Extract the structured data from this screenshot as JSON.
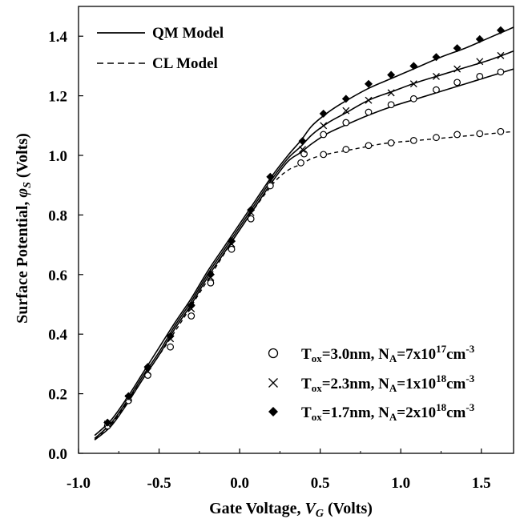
{
  "chart_data": {
    "type": "line",
    "xlabel": "Gate Voltage, V_G (Volts)",
    "xlabel_parts": {
      "prefix": "Gate Voltage, ",
      "var": "V",
      "sub": "G",
      "suffix": " (Volts)"
    },
    "ylabel": "Surface Potential, φ_S (Volts)",
    "ylabel_parts": {
      "prefix": "Surface Potential, ",
      "var": "φ",
      "sub": "S",
      "suffix": " (Volts)"
    },
    "xlim": [
      -1.0,
      1.7
    ],
    "ylim": [
      0.0,
      1.5
    ],
    "xticks": [
      "-1.0",
      "-0.5",
      "0.0",
      "0.5",
      "1.0",
      "1.5"
    ],
    "xtick_values": [
      -1.0,
      -0.5,
      0.0,
      0.5,
      1.0,
      1.5
    ],
    "yticks": [
      "0.0",
      "0.2",
      "0.4",
      "0.6",
      "0.8",
      "1.0",
      "1.2",
      "1.4"
    ],
    "ytick_values": [
      0.0,
      0.2,
      0.4,
      0.6,
      0.8,
      1.0,
      1.2,
      1.4
    ],
    "grid": false,
    "line_legend": {
      "placement": "top-left",
      "entries": [
        {
          "label": "QM Model",
          "style": "solid"
        },
        {
          "label": "CL Model",
          "style": "dashed"
        }
      ]
    },
    "marker_legend": {
      "placement": "bottom-right",
      "entries": [
        {
          "marker": "circle",
          "tox": "T",
          "tox_sub": "ox",
          "tox_val": "=3.0nm, N",
          "na_sub": "A",
          "na_val": "=7x10",
          "exp": "17",
          "unit": "cm",
          "unit_exp": "-3"
        },
        {
          "marker": "x",
          "tox": "T",
          "tox_sub": "ox",
          "tox_val": "=2.3nm, N",
          "na_sub": "A",
          "na_val": "=1x10",
          "exp": "18",
          "unit": "cm",
          "unit_exp": "-3"
        },
        {
          "marker": "diamond",
          "tox": "T",
          "tox_sub": "ox",
          "tox_val": "=1.7nm, N",
          "na_sub": "A",
          "na_val": "=2x10",
          "exp": "18",
          "unit": "cm",
          "unit_exp": "-3"
        }
      ]
    },
    "series": [
      {
        "marker": "circle",
        "line": "solid",
        "curve": [
          [
            -0.9,
            0.045
          ],
          [
            -0.8,
            0.09
          ],
          [
            -0.7,
            0.165
          ],
          [
            -0.6,
            0.25
          ],
          [
            -0.5,
            0.33
          ],
          [
            -0.4,
            0.42
          ],
          [
            -0.3,
            0.5
          ],
          [
            -0.2,
            0.59
          ],
          [
            -0.1,
            0.67
          ],
          [
            0.0,
            0.75
          ],
          [
            0.1,
            0.83
          ],
          [
            0.2,
            0.91
          ],
          [
            0.3,
            0.98
          ],
          [
            0.38,
            1.01
          ],
          [
            0.45,
            1.04
          ],
          [
            0.55,
            1.075
          ],
          [
            0.65,
            1.1
          ],
          [
            0.8,
            1.135
          ],
          [
            0.95,
            1.165
          ],
          [
            1.1,
            1.19
          ],
          [
            1.25,
            1.215
          ],
          [
            1.4,
            1.24
          ],
          [
            1.55,
            1.265
          ],
          [
            1.7,
            1.29
          ]
        ],
        "points": [
          [
            -0.82,
            0.092
          ],
          [
            -0.69,
            0.177
          ],
          [
            -0.57,
            0.262
          ],
          [
            -0.43,
            0.357
          ],
          [
            -0.3,
            0.461
          ],
          [
            -0.18,
            0.572
          ],
          [
            -0.05,
            0.685
          ],
          [
            0.07,
            0.787
          ],
          [
            0.19,
            0.898
          ],
          [
            0.38,
            0.975
          ],
          [
            0.4,
            1.005
          ],
          [
            0.52,
            1.07
          ],
          [
            0.66,
            1.11
          ],
          [
            0.8,
            1.145
          ],
          [
            0.94,
            1.17
          ],
          [
            1.08,
            1.19
          ],
          [
            1.22,
            1.22
          ],
          [
            1.35,
            1.245
          ],
          [
            1.49,
            1.265
          ],
          [
            1.62,
            1.28
          ]
        ]
      },
      {
        "marker": "circle",
        "line": "dashed",
        "curve": [
          [
            -0.9,
            0.05
          ],
          [
            -0.8,
            0.095
          ],
          [
            -0.6,
            0.25
          ],
          [
            -0.4,
            0.41
          ],
          [
            -0.2,
            0.58
          ],
          [
            0.0,
            0.75
          ],
          [
            0.2,
            0.9
          ],
          [
            0.3,
            0.95
          ],
          [
            0.38,
            0.97
          ],
          [
            0.45,
            0.99
          ],
          [
            0.55,
            1.005
          ],
          [
            0.7,
            1.02
          ],
          [
            0.9,
            1.04
          ],
          [
            1.1,
            1.05
          ],
          [
            1.3,
            1.06
          ],
          [
            1.5,
            1.07
          ],
          [
            1.7,
            1.08
          ]
        ],
        "points": [
          [
            0.52,
            1.003
          ],
          [
            0.66,
            1.02
          ],
          [
            0.8,
            1.033
          ],
          [
            0.94,
            1.042
          ],
          [
            1.08,
            1.05
          ],
          [
            1.22,
            1.06
          ],
          [
            1.35,
            1.07
          ],
          [
            1.49,
            1.073
          ],
          [
            1.62,
            1.08
          ]
        ]
      },
      {
        "marker": "x",
        "line": "solid",
        "curve": [
          [
            -0.9,
            0.05
          ],
          [
            -0.8,
            0.1
          ],
          [
            -0.7,
            0.175
          ],
          [
            -0.6,
            0.26
          ],
          [
            -0.5,
            0.34
          ],
          [
            -0.4,
            0.43
          ],
          [
            -0.3,
            0.51
          ],
          [
            -0.2,
            0.6
          ],
          [
            -0.1,
            0.68
          ],
          [
            0.0,
            0.76
          ],
          [
            0.1,
            0.84
          ],
          [
            0.2,
            0.92
          ],
          [
            0.3,
            0.99
          ],
          [
            0.38,
            1.03
          ],
          [
            0.45,
            1.07
          ],
          [
            0.55,
            1.11
          ],
          [
            0.65,
            1.14
          ],
          [
            0.8,
            1.185
          ],
          [
            0.95,
            1.215
          ],
          [
            1.1,
            1.245
          ],
          [
            1.25,
            1.27
          ],
          [
            1.4,
            1.295
          ],
          [
            1.55,
            1.32
          ],
          [
            1.7,
            1.35
          ]
        ],
        "points": [
          [
            -0.82,
            0.098
          ],
          [
            -0.69,
            0.185
          ],
          [
            -0.57,
            0.275
          ],
          [
            -0.43,
            0.385
          ],
          [
            -0.3,
            0.485
          ],
          [
            -0.18,
            0.59
          ],
          [
            -0.05,
            0.703
          ],
          [
            0.07,
            0.808
          ],
          [
            0.19,
            0.918
          ],
          [
            0.39,
            1.02
          ],
          [
            0.52,
            1.1
          ],
          [
            0.66,
            1.15
          ],
          [
            0.8,
            1.185
          ],
          [
            0.94,
            1.21
          ],
          [
            1.08,
            1.24
          ],
          [
            1.22,
            1.265
          ],
          [
            1.35,
            1.29
          ],
          [
            1.49,
            1.315
          ],
          [
            1.62,
            1.335
          ]
        ]
      },
      {
        "marker": "diamond",
        "line": "solid",
        "curve": [
          [
            -0.9,
            0.06
          ],
          [
            -0.8,
            0.11
          ],
          [
            -0.7,
            0.185
          ],
          [
            -0.6,
            0.27
          ],
          [
            -0.5,
            0.355
          ],
          [
            -0.4,
            0.44
          ],
          [
            -0.3,
            0.52
          ],
          [
            -0.2,
            0.61
          ],
          [
            -0.1,
            0.69
          ],
          [
            0.0,
            0.77
          ],
          [
            0.1,
            0.85
          ],
          [
            0.2,
            0.93
          ],
          [
            0.3,
            1.0
          ],
          [
            0.38,
            1.05
          ],
          [
            0.45,
            1.1
          ],
          [
            0.55,
            1.145
          ],
          [
            0.65,
            1.18
          ],
          [
            0.8,
            1.225
          ],
          [
            0.95,
            1.26
          ],
          [
            1.1,
            1.295
          ],
          [
            1.25,
            1.33
          ],
          [
            1.4,
            1.36
          ],
          [
            1.55,
            1.395
          ],
          [
            1.7,
            1.43
          ]
        ],
        "points": [
          [
            -0.82,
            0.103
          ],
          [
            -0.69,
            0.192
          ],
          [
            -0.57,
            0.29
          ],
          [
            -0.43,
            0.393
          ],
          [
            -0.3,
            0.497
          ],
          [
            -0.18,
            0.6
          ],
          [
            -0.05,
            0.712
          ],
          [
            0.07,
            0.817
          ],
          [
            0.19,
            0.928
          ],
          [
            0.39,
            1.048
          ],
          [
            0.52,
            1.14
          ],
          [
            0.66,
            1.19
          ],
          [
            0.8,
            1.24
          ],
          [
            0.94,
            1.27
          ],
          [
            1.08,
            1.3
          ],
          [
            1.22,
            1.33
          ],
          [
            1.35,
            1.36
          ],
          [
            1.49,
            1.39
          ],
          [
            1.62,
            1.42
          ]
        ]
      }
    ]
  }
}
